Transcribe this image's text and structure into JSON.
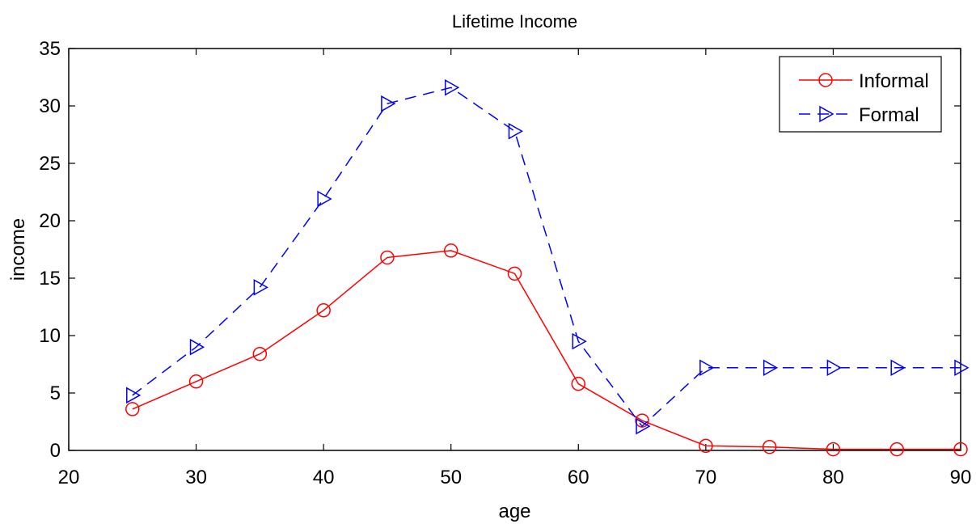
{
  "chart_data": {
    "type": "line",
    "title": "Lifetime Income",
    "xlabel": "age",
    "ylabel": "income",
    "xlim": [
      20,
      90
    ],
    "ylim": [
      0,
      35
    ],
    "xticks": [
      20,
      30,
      40,
      50,
      60,
      70,
      80,
      90
    ],
    "yticks": [
      0,
      5,
      10,
      15,
      20,
      25,
      30,
      35
    ],
    "grid": false,
    "legend_position": "top-right",
    "x": [
      25,
      30,
      35,
      40,
      45,
      50,
      55,
      60,
      65,
      70,
      75,
      80,
      85,
      90
    ],
    "series": [
      {
        "name": "Informal",
        "color": "#ff0000",
        "marker": "circle",
        "line_style": "solid",
        "values": [
          3.6,
          6.0,
          8.4,
          12.2,
          16.8,
          17.4,
          15.4,
          5.8,
          2.6,
          0.4,
          0.3,
          0.1,
          0.1,
          0.1
        ]
      },
      {
        "name": "Formal",
        "color": "#0000ff",
        "marker": "triangle-right",
        "line_style": "dashed",
        "values": [
          4.8,
          9.0,
          14.2,
          21.9,
          30.2,
          31.6,
          27.8,
          9.5,
          2.1,
          7.2,
          7.2,
          7.2,
          7.2,
          7.2
        ]
      }
    ]
  }
}
